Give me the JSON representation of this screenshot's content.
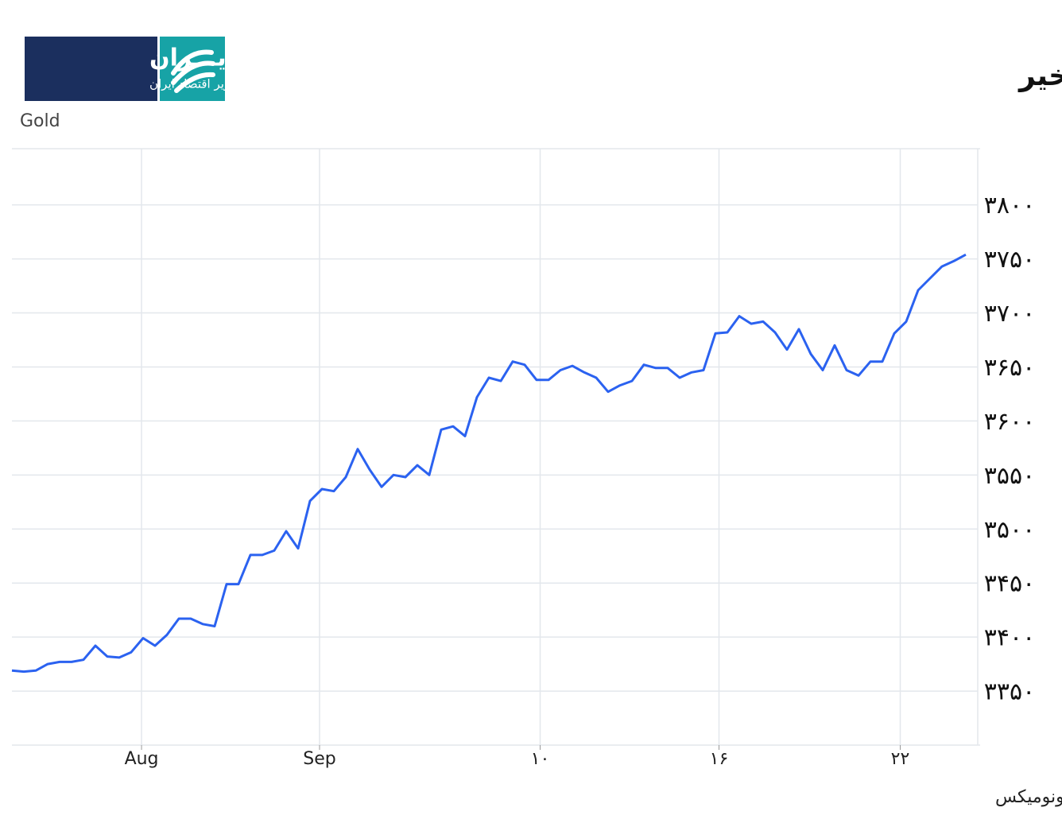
{
  "logo": {
    "name": "اکوایـــران",
    "tagline": "تصویر اقتصاد ایران"
  },
  "chart_data": {
    "type": "line",
    "title": "روند طلای جهانی در یک ماه اخیر",
    "source": "منبع: تریدینگ اکونومیکس",
    "x": [
      0,
      1,
      2,
      3,
      4,
      5,
      6,
      7,
      8,
      9,
      10,
      11,
      12,
      13,
      14,
      15,
      16,
      17,
      18,
      19,
      20,
      21,
      22,
      23,
      24,
      25,
      26,
      27,
      28,
      29,
      30,
      31,
      32,
      33,
      34,
      35,
      36,
      37,
      38,
      39,
      40,
      41,
      42,
      43,
      44,
      45,
      46,
      47,
      48,
      49,
      50,
      51,
      52,
      53,
      54,
      55,
      56,
      57,
      58,
      59,
      60,
      61,
      62,
      63,
      64,
      65,
      66,
      67,
      68,
      69,
      70,
      71,
      72,
      73,
      74,
      75,
      76,
      77,
      78,
      79,
      80
    ],
    "series": [
      {
        "name": "Gold",
        "color": "#2b62f0",
        "values": [
          3369,
          3368,
          3369,
          3375,
          3377,
          3377,
          3379,
          3392,
          3382,
          3381,
          3386,
          3399,
          3392,
          3402,
          3417,
          3417,
          3412,
          3410,
          3449,
          3449,
          3476,
          3476,
          3480,
          3498,
          3482,
          3526,
          3537,
          3535,
          3548,
          3574,
          3555,
          3539,
          3550,
          3548,
          3559,
          3550,
          3592,
          3595,
          3586,
          3622,
          3640,
          3637,
          3655,
          3652,
          3638,
          3638,
          3647,
          3651,
          3645,
          3640,
          3627,
          3633,
          3637,
          3652,
          3649,
          3649,
          3640,
          3645,
          3647,
          3681,
          3682,
          3697,
          3690,
          3692,
          3682,
          3666,
          3685,
          3662,
          3647,
          3670,
          3647,
          3642,
          3655,
          3655,
          3681,
          3692,
          3721,
          3732,
          3743,
          3748,
          3754
        ]
      }
    ],
    "xlim": [
      0,
      81
    ],
    "xticks": [
      {
        "value": 10.87,
        "label": "Aug"
      },
      {
        "value": 25.8,
        "label": "Sep"
      },
      {
        "value": 44.3,
        "label": "۱۰"
      },
      {
        "value": 59.3,
        "label": "۱۶"
      },
      {
        "value": 74.5,
        "label": "۲۲"
      }
    ],
    "ylim": [
      3300,
      3852
    ],
    "yticks": [
      {
        "value": 3350,
        "label": "۳۳۵۰"
      },
      {
        "value": 3400,
        "label": "۳۴۰۰"
      },
      {
        "value": 3450,
        "label": "۳۴۵۰"
      },
      {
        "value": 3500,
        "label": "۳۵۰۰"
      },
      {
        "value": 3550,
        "label": "۳۵۵۰"
      },
      {
        "value": 3600,
        "label": "۳۶۰۰"
      },
      {
        "value": 3650,
        "label": "۳۶۵۰"
      },
      {
        "value": 3700,
        "label": "۳۷۰۰"
      },
      {
        "value": 3750,
        "label": "۳۷۵۰"
      },
      {
        "value": 3800,
        "label": "۳۸۰۰"
      }
    ],
    "grid": true
  }
}
